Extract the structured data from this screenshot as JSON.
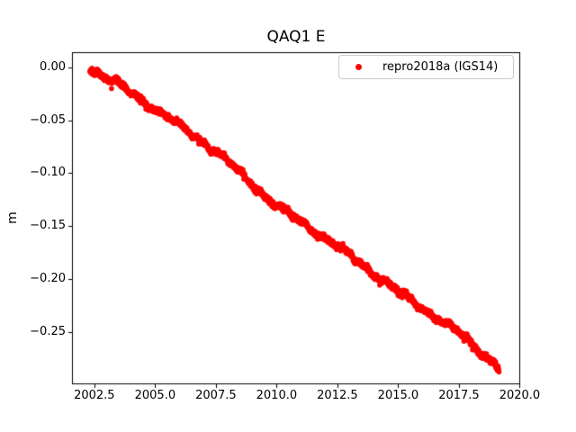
{
  "figure": {
    "background": "#ffffff",
    "axes_edge_color": "#000000",
    "text_color": "#000000"
  },
  "legend": {
    "label": "repro2018a (IGS14)",
    "marker_color": "#ff0000",
    "border_color": "#cccccc",
    "position": "upper right"
  },
  "chart_data": {
    "type": "scatter",
    "title": "QAQ1 E",
    "xlabel": "",
    "ylabel": "m",
    "grid": false,
    "xlim": [
      2001.58,
      2020.02
    ],
    "ylim": [
      -0.2998,
      0.0145
    ],
    "x_ticks": [
      2002.5,
      2005.0,
      2007.5,
      2010.0,
      2012.5,
      2015.0,
      2017.5,
      2020.0
    ],
    "x_tick_labels": [
      "2002.5",
      "2005.0",
      "2007.5",
      "2010.0",
      "2012.5",
      "2015.0",
      "2017.5",
      "2020.0"
    ],
    "y_ticks": [
      0.0,
      -0.05,
      -0.1,
      -0.15,
      -0.2,
      -0.25
    ],
    "y_tick_labels": [
      "0.00",
      "−0.05",
      "−0.10",
      "−0.15",
      "−0.20",
      "−0.25"
    ],
    "series": [
      {
        "name": "repro2018a (IGS14)",
        "color": "#ff0000",
        "marker": "dot",
        "marker_radius_px": 2.8,
        "x_start": 2002.32,
        "x_end": 2019.15,
        "trend_slope_m_per_yr": -0.0169,
        "anchors": [
          [
            2002.32,
            -0.001
          ],
          [
            2003.5,
            -0.016
          ],
          [
            2005.0,
            -0.039
          ],
          [
            2007.5,
            -0.079
          ],
          [
            2010.0,
            -0.131
          ],
          [
            2012.5,
            -0.169
          ],
          [
            2015.0,
            -0.212
          ],
          [
            2017.5,
            -0.251
          ],
          [
            2019.15,
            -0.284
          ]
        ],
        "scatter_band": {
          "points_per_year": 150,
          "noise_sigma_m": 0.0013,
          "outlier_rate": 0.008,
          "outlier_max_depth_m": 0.006,
          "wiggle_amplitudes_m": [
            0.0013,
            0.0008,
            0.0016
          ],
          "wiggle_periods_yr": [
            0.85,
            0.37,
            2.3
          ],
          "wiggle_phases": [
            1.3,
            4.1,
            0.7
          ]
        }
      }
    ]
  }
}
